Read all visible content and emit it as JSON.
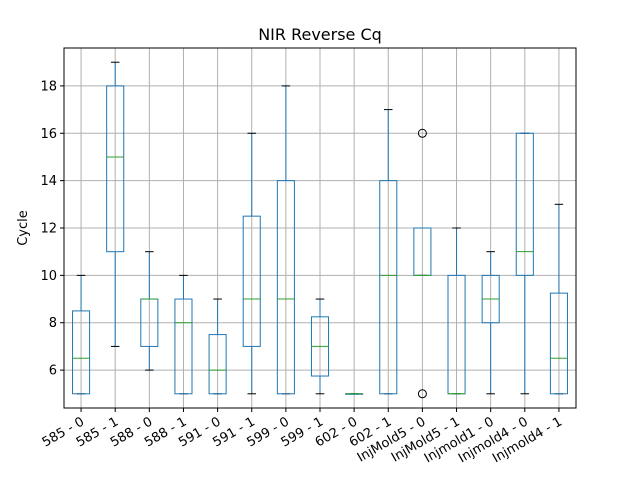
{
  "chart_data": {
    "type": "box",
    "title": "NIR Reverse Cq",
    "ylabel": "Cycle",
    "xlabel": "",
    "ylim": [
      4.4,
      19.6
    ],
    "yticks": [
      6,
      8,
      10,
      12,
      14,
      16,
      18
    ],
    "grid": true,
    "colors": {
      "box": "#1f77b4",
      "median": "#2ca02c",
      "whisker": "#000000",
      "grid": "#b0b0b0"
    },
    "categories": [
      "585 - 0",
      "585 - 1",
      "588 - 0",
      "588 - 1",
      "591 - 0",
      "591 - 1",
      "599 - 0",
      "599 - 1",
      "602 - 0",
      "602 - 1",
      "InjMold5 - 0",
      "InjMold5 - 1",
      "Injmold1 - 0",
      "Injmold4 - 0",
      "Injmold4 - 1"
    ],
    "boxes": [
      {
        "whislo": 5,
        "q1": 5,
        "med": 6.5,
        "q3": 8.5,
        "whishi": 10,
        "fliers": []
      },
      {
        "whislo": 7,
        "q1": 11,
        "med": 15,
        "q3": 18,
        "whishi": 19,
        "fliers": []
      },
      {
        "whislo": 6,
        "q1": 7,
        "med": 9,
        "q3": 9,
        "whishi": 11,
        "fliers": []
      },
      {
        "whislo": 5,
        "q1": 5,
        "med": 8,
        "q3": 9,
        "whishi": 10,
        "fliers": []
      },
      {
        "whislo": 5,
        "q1": 5,
        "med": 6,
        "q3": 7.5,
        "whishi": 9,
        "fliers": []
      },
      {
        "whislo": 5,
        "q1": 7,
        "med": 9,
        "q3": 12.5,
        "whishi": 16,
        "fliers": []
      },
      {
        "whislo": 5,
        "q1": 5,
        "med": 9,
        "q3": 14,
        "whishi": 18,
        "fliers": []
      },
      {
        "whislo": 5,
        "q1": 5.75,
        "med": 7,
        "q3": 8.25,
        "whishi": 9,
        "fliers": []
      },
      {
        "whislo": 5,
        "q1": 5,
        "med": 5,
        "q3": 5,
        "whishi": 5,
        "fliers": []
      },
      {
        "whislo": 5,
        "q1": 5,
        "med": 10,
        "q3": 14,
        "whishi": 17,
        "fliers": []
      },
      {
        "whislo": 10,
        "q1": 10,
        "med": 10,
        "q3": 12,
        "whishi": 12,
        "fliers": [
          16,
          5
        ]
      },
      {
        "whislo": 5,
        "q1": 5,
        "med": 5,
        "q3": 10,
        "whishi": 12,
        "fliers": []
      },
      {
        "whislo": 5,
        "q1": 8,
        "med": 9,
        "q3": 10,
        "whishi": 11,
        "fliers": []
      },
      {
        "whislo": 5,
        "q1": 10,
        "med": 11,
        "q3": 16,
        "whishi": 16,
        "fliers": []
      },
      {
        "whislo": 5,
        "q1": 5,
        "med": 6.5,
        "q3": 9.25,
        "whishi": 13,
        "fliers": []
      }
    ]
  }
}
